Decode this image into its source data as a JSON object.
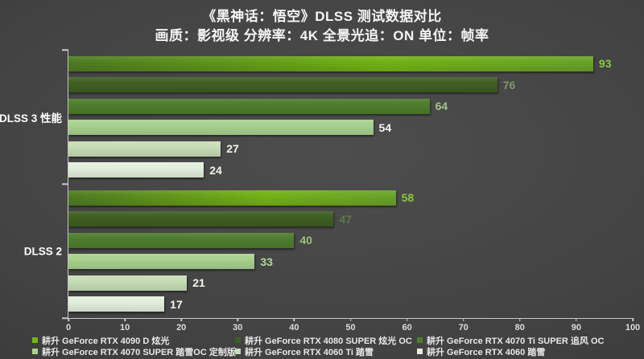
{
  "title": "《黑神话：悟空》DLSS 测试数据对比",
  "subtitle": "画质：影视级 分辨率：4K 全景光追：ON 单位：帧率",
  "chart_data": {
    "type": "bar",
    "orientation": "horizontal",
    "title": "《黑神话：悟空》DLSS 测试数据对比",
    "subtitle": "画质：影视级 分辨率：4K 全景光追：ON 单位：帧率",
    "unit": "帧率",
    "xlim": [
      0,
      100
    ],
    "x_ticks": [
      0,
      10,
      20,
      30,
      40,
      50,
      60,
      70,
      80,
      90,
      100
    ],
    "grid": false,
    "legend_position": "bottom",
    "groups": [
      "DLSS 3 性能",
      "DLSS 2"
    ],
    "series": [
      {
        "name": "耕升 GeForce RTX 4090 D 炫光",
        "color": "#74b414",
        "bar_gradient": [
          "#4e7a22",
          "#72b315",
          "#68a22a"
        ],
        "values": [
          93,
          58
        ],
        "label_colors": [
          "#8ec63f",
          "#8ec63f"
        ]
      },
      {
        "name": "耕升 GeForce RTX 4080 SUPER 炫光 OC",
        "color": "#3e5f22",
        "values": [
          76,
          47
        ],
        "label_colors": [
          "#7f9a66",
          "#5e7a44"
        ]
      },
      {
        "name": "耕升 GeForce RTX 4070 Ti SUPER 追风 OC",
        "color": "#4e7d2c",
        "values": [
          64,
          40
        ],
        "label_colors": [
          "#a3c486",
          "#9cbf7e"
        ]
      },
      {
        "name": "耕升 GeForce RTX 4070 SUPER 踏雪OC 定制版",
        "color": "#a9d18e",
        "values": [
          54,
          33
        ],
        "label_colors": [
          "#f5f5f0",
          "#b7d69e"
        ]
      },
      {
        "name": "耕升 GeForce RTX 4060 Ti 踏雪",
        "color": "#c6ddb5",
        "values": [
          27,
          21
        ],
        "label_colors": [
          "#f5f5f0",
          "#f5f5f0"
        ]
      },
      {
        "name": "耕升 GeForce RTX 4060 踏雪",
        "color": "#e3efdd",
        "values": [
          24,
          17
        ],
        "label_colors": [
          "#f5f5f0",
          "#f5f5f0"
        ]
      }
    ]
  }
}
